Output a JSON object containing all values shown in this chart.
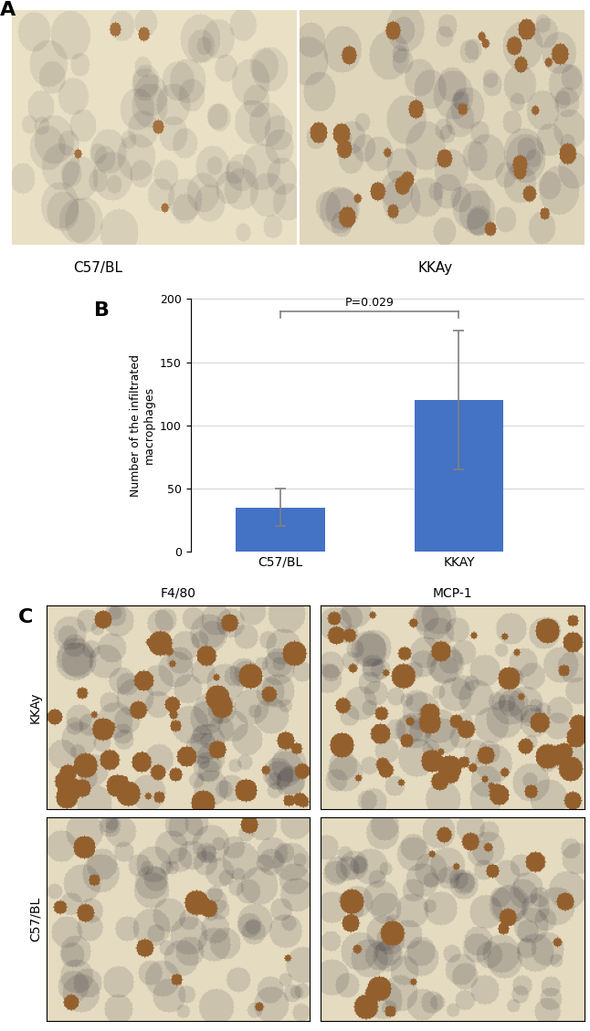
{
  "panel_A_label": "A",
  "panel_B_label": "B",
  "panel_C_label": "C",
  "bar_categories": [
    "C57/BL",
    "KKAY"
  ],
  "bar_values": [
    35,
    120
  ],
  "bar_errors": [
    15,
    55
  ],
  "bar_color": "#4472C4",
  "ylabel": "Number of the infiltrated\nmacrophages",
  "ylim": [
    0,
    200
  ],
  "yticks": [
    0,
    50,
    100,
    150,
    200
  ],
  "pvalue_text": "P=0.029",
  "label_A_C57BL": "C57/BL",
  "label_A_KKAy": "KKAy",
  "label_C_F480": "F4/80",
  "label_C_MCP1": "MCP-1",
  "label_C_KKAy": "KKAy",
  "label_C_C57BL": "C57/BL",
  "bg_color": "#ffffff",
  "image_bg": "#f5f0e8"
}
